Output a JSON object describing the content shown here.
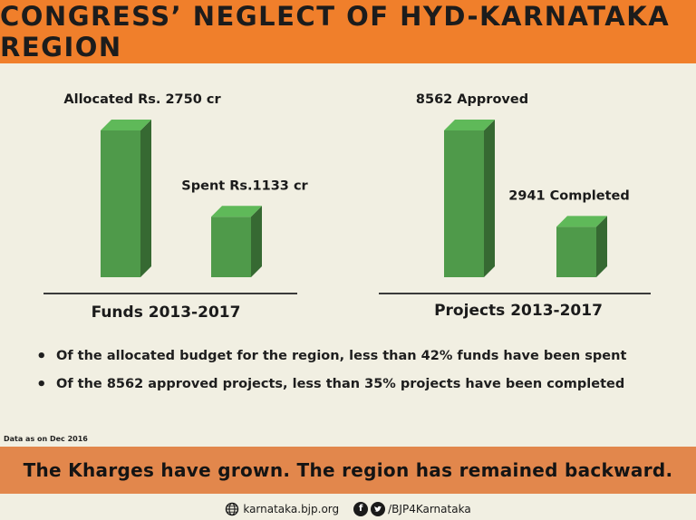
{
  "header": {
    "title": "CONGRESS’ NEGLECT OF HYD-KARNATAKA REGION"
  },
  "chart_data": [
    {
      "type": "bar",
      "title": "",
      "xlabel": "Funds 2013-2017",
      "ylabel": "",
      "categories": [
        "Allocated",
        "Spent"
      ],
      "values": [
        2750,
        1133
      ],
      "data_labels": [
        "Allocated Rs. 2750 cr",
        "Spent Rs.1133 cr"
      ],
      "ylim": [
        0,
        2750
      ],
      "grid": false,
      "bar_color": "#4f9a4a"
    },
    {
      "type": "bar",
      "title": "",
      "xlabel": "Projects 2013-2017",
      "ylabel": "",
      "categories": [
        "Approved",
        "Completed"
      ],
      "values": [
        8562,
        2941
      ],
      "data_labels": [
        "8562 Approved",
        "2941 Completed"
      ],
      "ylim": [
        0,
        8562
      ],
      "grid": false,
      "bar_color": "#4f9a4a"
    }
  ],
  "bullets": [
    "Of the allocated budget for the region, less than 42% funds have been spent",
    "Of the 8562 approved projects, less than 35% projects have been completed"
  ],
  "note": "Data as on Dec 2016",
  "banner": "The Kharges have grown. The region has remained backward.",
  "footer": {
    "website": "karnataka.bjp.org",
    "handle": "/BJP4Karnataka",
    "icons": [
      "globe-icon",
      "facebook-icon",
      "twitter-icon"
    ]
  },
  "colors": {
    "header_bg": "#f07f2b",
    "banner_bg": "#e2874c",
    "background": "#f1efe2",
    "bar": "#4f9a4a"
  }
}
